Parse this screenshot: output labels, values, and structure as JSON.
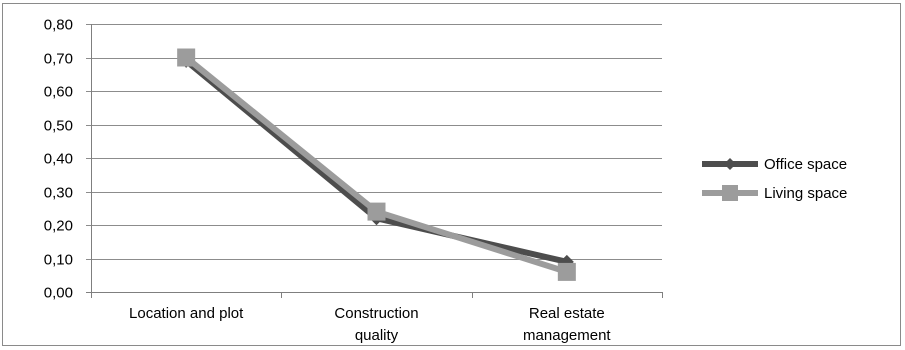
{
  "chart_data": {
    "type": "line",
    "title": "",
    "xlabel": "",
    "ylabel": "",
    "categories": [
      [
        "Location and plot"
      ],
      [
        "Construction",
        "quality"
      ],
      [
        "Real estate",
        "management"
      ]
    ],
    "ylim": [
      0,
      0.8
    ],
    "yticks": [
      0,
      0.1,
      0.2,
      0.3,
      0.4,
      0.5,
      0.6,
      0.7,
      0.8
    ],
    "ytick_labels": [
      "0,00",
      "0,10",
      "0,20",
      "0,30",
      "0,40",
      "0,50",
      "0,60",
      "0,70",
      "0,80"
    ],
    "grid": true,
    "legend_position": "right",
    "series": [
      {
        "name": "Office space",
        "values": [
          0.69,
          0.22,
          0.09
        ],
        "color": "#4d4d4d",
        "marker": "diamond"
      },
      {
        "name": "Living space",
        "values": [
          0.7,
          0.24,
          0.06
        ],
        "color": "#9c9c9c",
        "marker": "square"
      }
    ]
  }
}
